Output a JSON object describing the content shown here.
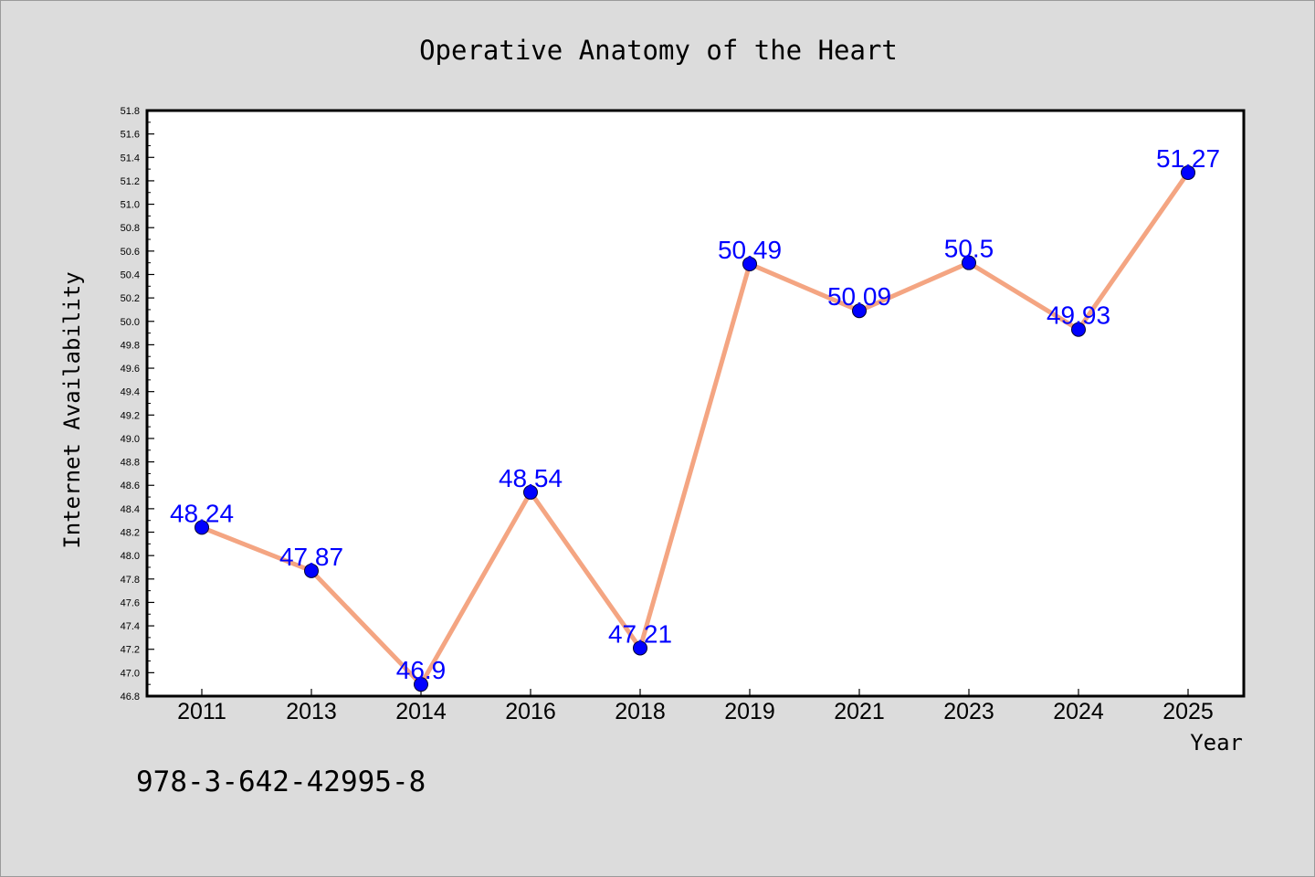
{
  "chart_data": {
    "type": "line",
    "title": "Operative Anatomy of the Heart",
    "xlabel": "Year",
    "ylabel": "Internet Availability",
    "categories": [
      "2011",
      "2013",
      "2014",
      "2016",
      "2018",
      "2019",
      "2021",
      "2023",
      "2024",
      "2025"
    ],
    "series": [
      {
        "values": [
          48.24,
          47.87,
          46.9,
          48.54,
          47.21,
          50.49,
          50.09,
          50.5,
          49.93,
          51.27
        ],
        "labels": [
          "48.24",
          "47.87",
          "46.9",
          "48.54",
          "47.21",
          "50.49",
          "50.09",
          "50.5",
          "49.93",
          "51.27"
        ]
      }
    ],
    "ylim": [
      46.8,
      51.8
    ],
    "yticks": [
      "46.8",
      "47.0",
      "47.2",
      "47.4",
      "47.6",
      "47.8",
      "48.0",
      "48.2",
      "48.4",
      "48.6",
      "48.8",
      "49.0",
      "49.2",
      "49.4",
      "49.6",
      "49.8",
      "50.0",
      "50.2",
      "50.4",
      "50.6",
      "50.8",
      "51.0",
      "51.2",
      "51.4",
      "51.6",
      "51.8"
    ],
    "grid": false,
    "legend": "none"
  },
  "footer": {
    "isbn": "978-3-642-42995-8"
  },
  "colors": {
    "line": "#f4a582",
    "marker": "#0000ff",
    "label": "#0000ff",
    "background": "#dcdcdc",
    "plot_background": "#ffffff"
  }
}
